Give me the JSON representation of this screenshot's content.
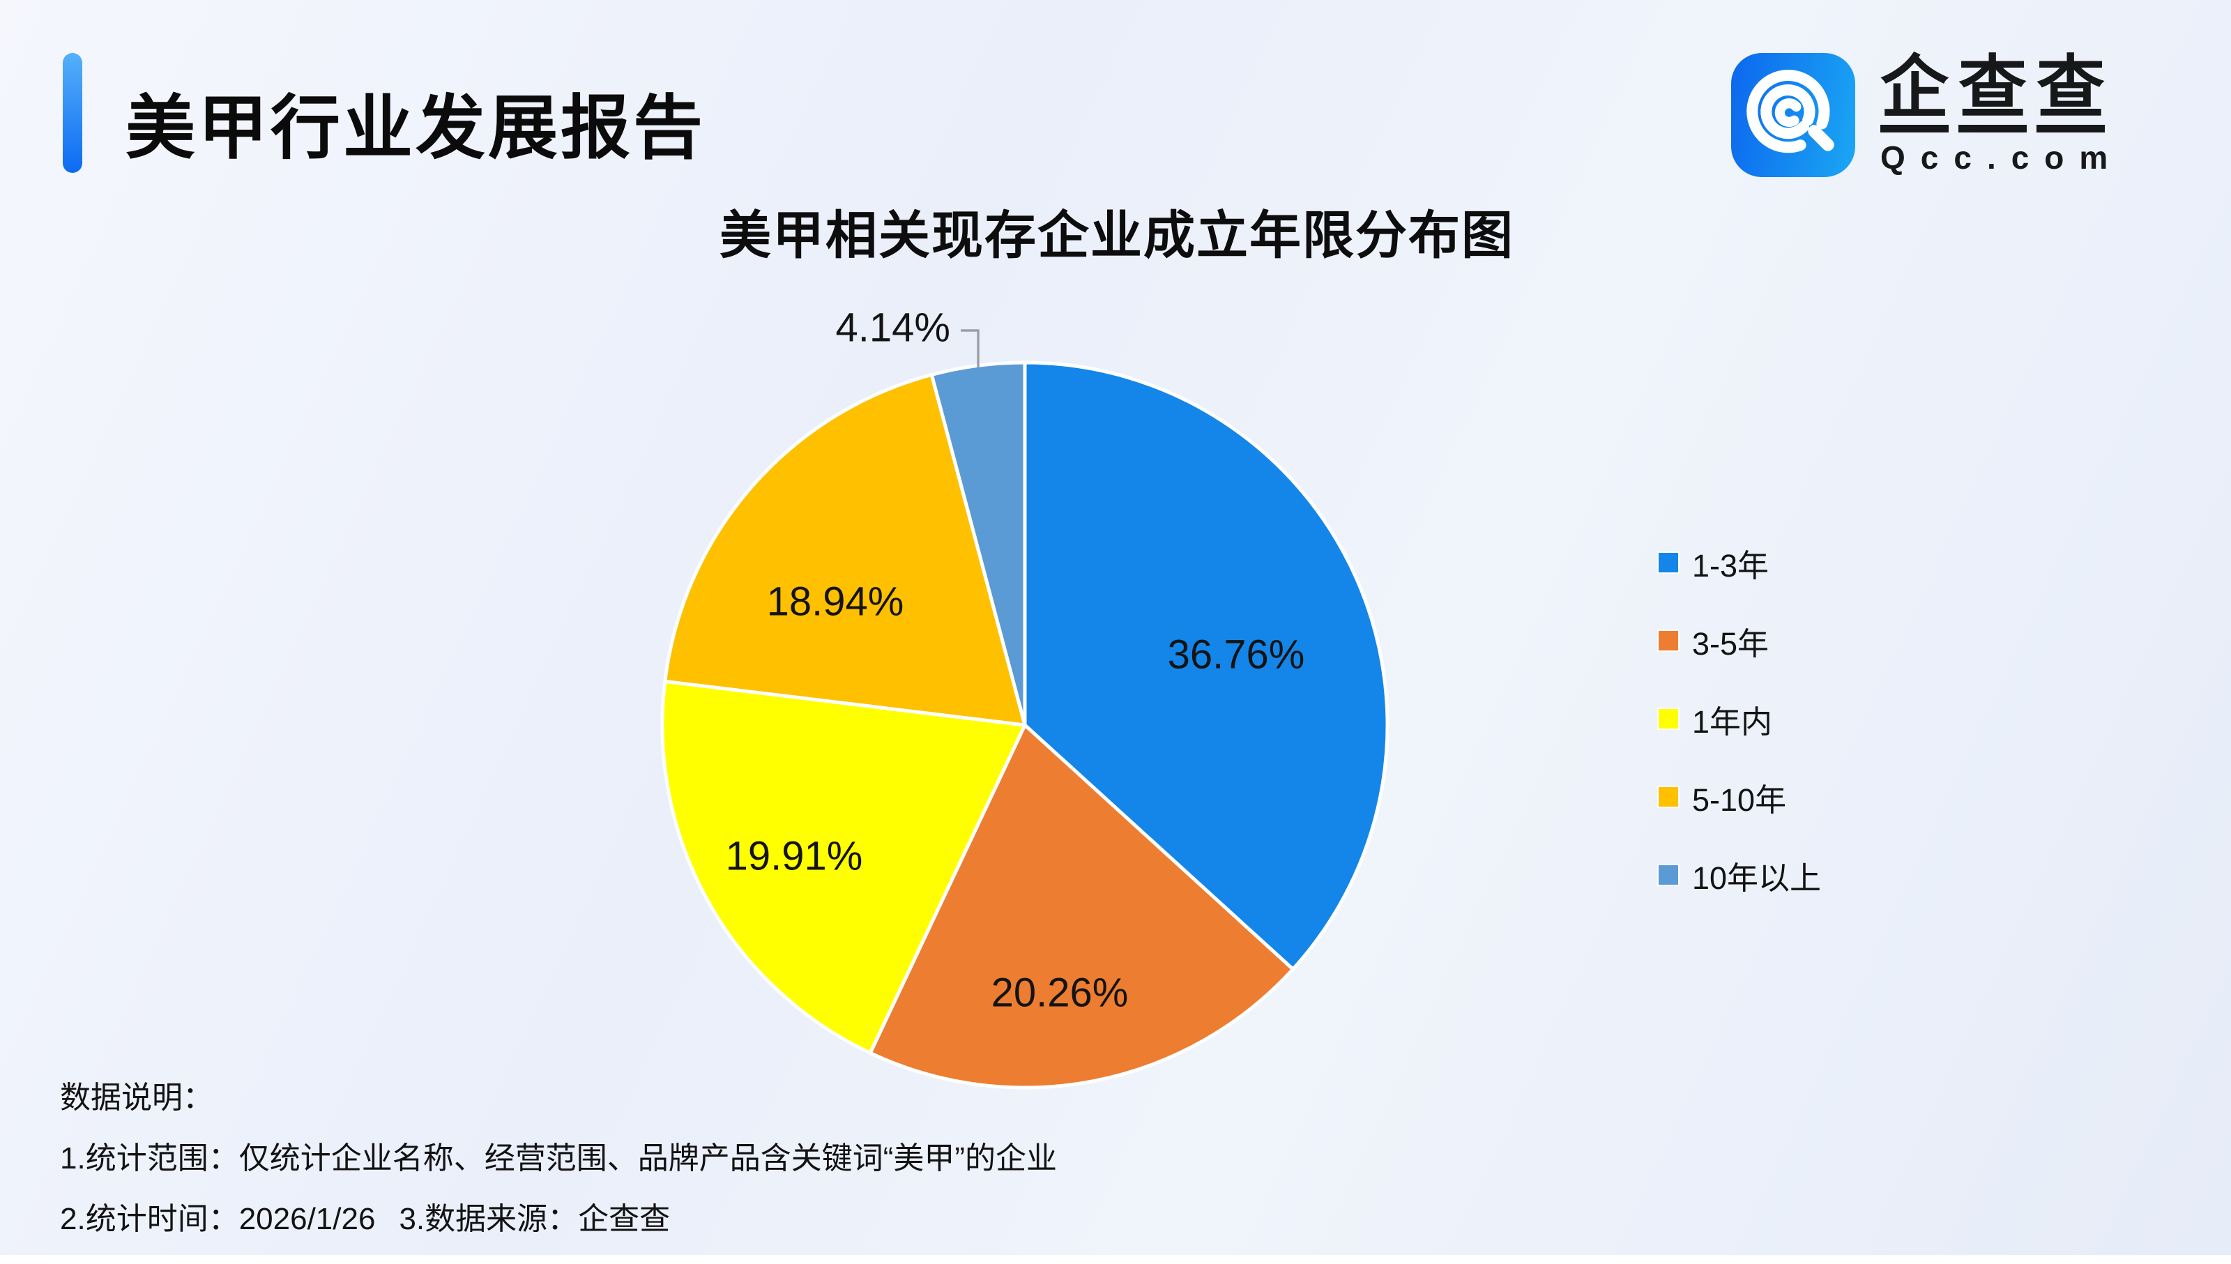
{
  "header": {
    "title": "美甲行业发展报告",
    "logo": {
      "cn_chars": [
        "企",
        "查",
        "查"
      ],
      "domain": "Qcc.com"
    }
  },
  "chart_data": {
    "type": "pie",
    "title": "美甲相关现存企业成立年限分布图",
    "categories": [
      "1-3年",
      "3-5年",
      "1年内",
      "5-10年",
      "10年以上"
    ],
    "values": [
      36.76,
      20.26,
      19.91,
      18.94,
      4.14
    ],
    "labels": [
      "36.76%",
      "20.26%",
      "19.91%",
      "18.94%",
      "4.14%"
    ],
    "unit": "%",
    "colors": [
      "#1486e9",
      "#ed7d31",
      "#ffff00",
      "#ffc000",
      "#5b9bd5"
    ],
    "slice_border_color": "#ffffff",
    "label_color": "#141414",
    "callout_line_color": "#9aa0a6",
    "start_angle": "12-oclock",
    "direction": "clockwise",
    "legend_position": "right"
  },
  "footer": {
    "heading": "数据说明：",
    "note1": "1.统计范围：仅统计企业名称、经营范围、品牌产品含关键词“美甲”的企业",
    "note2a": "2.统计时间：2026/1/26",
    "note2b": "3.数据来源：企查查"
  },
  "theme": {
    "accent_blue": "#0d6af2",
    "background": "#edf1f9"
  }
}
